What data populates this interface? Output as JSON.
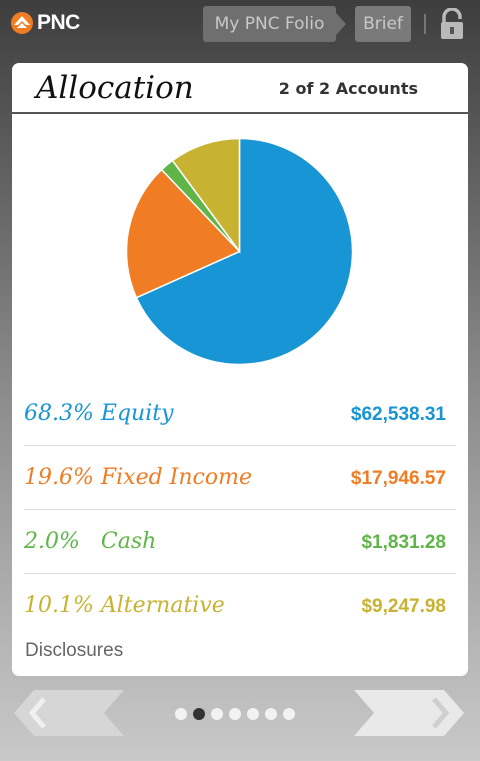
{
  "header": {
    "logo_text": "PNC",
    "nav_folio": "My PNC Folio",
    "nav_brief": "Brief"
  },
  "card": {
    "title": "Allocation",
    "accounts": "2 of 2 Accounts"
  },
  "allocation": [
    {
      "percent_label": "68.3%",
      "name": "Equity",
      "label": "68.3% Equity",
      "value": "$62,538.31",
      "pct": 68.3,
      "color": "#1795d4"
    },
    {
      "percent_label": "19.6%",
      "name": "Fixed Income",
      "label": "19.6% Fixed Income",
      "value": "$17,946.57",
      "pct": 19.6,
      "color": "#f07c24"
    },
    {
      "percent_label": "2.0%",
      "name": "Cash",
      "label": "2.0%   Cash",
      "value": "$1,831.28",
      "pct": 2.0,
      "color": "#5fb547"
    },
    {
      "percent_label": "10.1%",
      "name": "Alternative",
      "label": "10.1% Alternative",
      "value": "$9,247.98",
      "pct": 10.1,
      "color": "#c7b232"
    }
  ],
  "disclosures": "Disclosures",
  "pager": {
    "total": 7,
    "active": 2
  }
}
